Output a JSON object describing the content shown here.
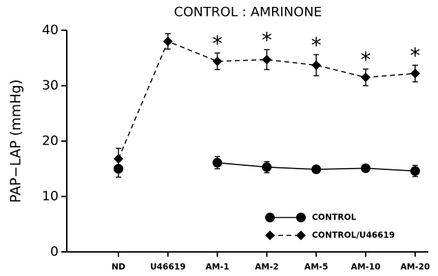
{
  "chart_data": {
    "type": "line",
    "title": "CONTROL : AMRINONE",
    "y_label": "PAP−LAP (mmHg)",
    "categories": [
      "ND",
      "U46619",
      "AM-1",
      "AM-2",
      "AM-5",
      "AM-10",
      "AM-20"
    ],
    "series": [
      {
        "name": "CONTROL",
        "color": "#000000",
        "marker": "circle",
        "dash": "solid",
        "values": [
          15,
          null,
          16.1,
          15.3,
          14.9,
          15.1,
          14.6
        ],
        "errors": [
          1.5,
          null,
          1.1,
          1.0,
          0.6,
          0.6,
          1.0
        ]
      },
      {
        "name": "CONTROL/U46619",
        "color": "#000000",
        "marker": "diamond",
        "dash": "dashed",
        "values": [
          16.8,
          38,
          34.4,
          34.7,
          33.7,
          31.5,
          32.2
        ],
        "errors": [
          1.9,
          1.4,
          1.5,
          1.8,
          1.9,
          1.5,
          1.5
        ]
      }
    ],
    "annotations": [
      {
        "text": "*",
        "x": "AM-1"
      },
      {
        "text": "*",
        "x": "AM-2"
      },
      {
        "text": "*",
        "x": "AM-5"
      },
      {
        "text": "*",
        "x": "AM-10"
      },
      {
        "text": "*",
        "x": "AM-20"
      }
    ],
    "ylim": [
      0,
      40
    ],
    "yticks": [
      0,
      10,
      20,
      30,
      40
    ],
    "legend": "lower right"
  }
}
